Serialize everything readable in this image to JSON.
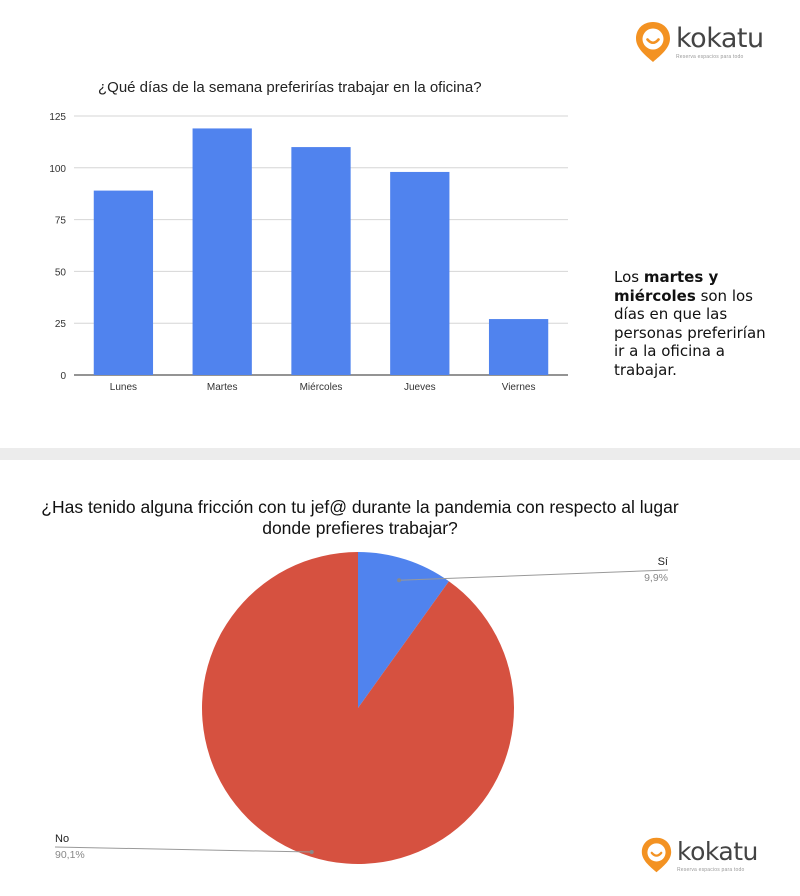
{
  "logo": {
    "name": "kokatu",
    "tagline": "Reserva espacios para todo",
    "colors": {
      "orange": "#f39222",
      "text": "#444444"
    }
  },
  "note": {
    "intro": "Los ",
    "highlight": "martes y miércoles",
    "rest": " son los días en que las personas preferirían ir a la oficina a trabajar."
  },
  "chart_data": [
    {
      "type": "bar",
      "title": "¿Qué días de la semana preferirías trabajar en la oficina?",
      "categories": [
        "Lunes",
        "Martes",
        "Miércoles",
        "Jueves",
        "Viernes"
      ],
      "values": [
        89,
        119,
        110,
        98,
        27
      ],
      "ylim": [
        0,
        125
      ],
      "yticks": [
        0,
        25,
        50,
        75,
        100,
        125
      ],
      "xlabel": "",
      "ylabel": "",
      "grid": true,
      "color": "#5083ee"
    },
    {
      "type": "pie",
      "title": "¿Has tenido alguna fricción con tu jef@ durante la pandemia con respecto al lugar donde prefieres trabajar?",
      "slices": [
        {
          "label": "Sí",
          "value": 9.9,
          "value_label": "9,9%",
          "color": "#5083ee"
        },
        {
          "label": "No",
          "value": 90.1,
          "value_label": "90,1%",
          "color": "#d65140"
        }
      ]
    }
  ]
}
